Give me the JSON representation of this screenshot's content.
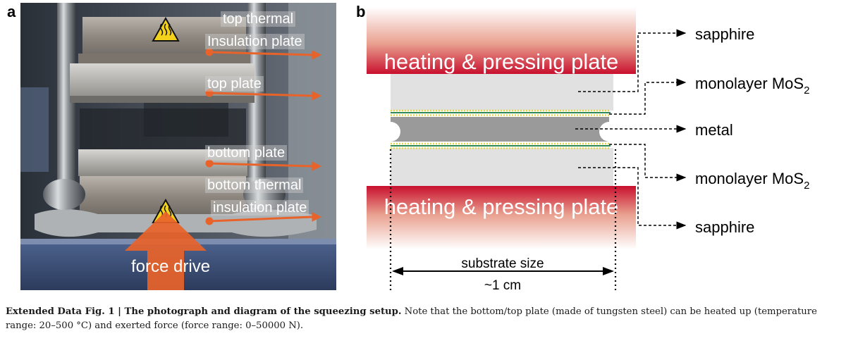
{
  "panel_a": {
    "letter": "a",
    "labels": {
      "top_thermal_1": "top thermal",
      "top_thermal_2": "Insulation plate",
      "top_plate": "top plate",
      "bottom_plate": "bottom plate",
      "bottom_thermal_1": "bottom thermal",
      "bottom_thermal_2": "insulation plate",
      "force_drive": "force drive"
    }
  },
  "panel_b": {
    "letter": "b",
    "plate_top_label": "heating & pressing plate",
    "plate_bottom_label": "heating & pressing plate",
    "callout_sapphire_top": "sapphire",
    "callout_mos2_top": "monolayer MoS",
    "callout_metal": "metal",
    "callout_mos2_bottom": "monolayer MoS",
    "callout_sapphire_bottom": "sapphire",
    "subscript": "2",
    "dimension_label": "substrate size",
    "dimension_value": "~1 cm"
  },
  "colors": {
    "plate_red": "#c8102e",
    "sapphire_gray": "#e1e1e1",
    "metal_gray": "#9a9a9a",
    "mos2_green": "#2e8b57",
    "mos2_yellow": "#e6d84a",
    "arrow_orange": "#e8632a"
  },
  "caption": {
    "title": "Extended Data Fig. 1 | The photograph and diagram of the squeezing setup.",
    "body": " Note that the bottom/top plate (made of tungsten steel) can be heated up (temperature range: 20–500 °C) and exerted force (force range: 0–50000 N)."
  }
}
